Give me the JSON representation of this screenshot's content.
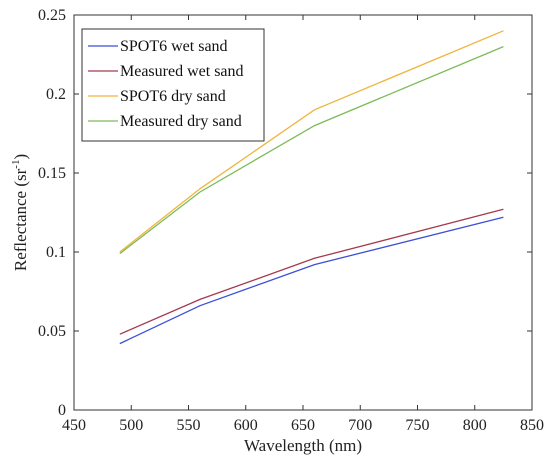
{
  "chart_data": {
    "type": "line",
    "xlabel": "Wavelength (nm)",
    "ylabel_main": "Reflectance (sr",
    "ylabel_sup": "-1",
    "ylabel_close": ")",
    "xlim": [
      450,
      850
    ],
    "ylim": [
      0,
      0.25
    ],
    "xticks": [
      "450",
      "500",
      "550",
      "600",
      "650",
      "700",
      "750",
      "800",
      "850"
    ],
    "yticks": [
      "0",
      "0.05",
      "0.1",
      "0.15",
      "0.2",
      "0.25"
    ],
    "grid": false,
    "legend_position": "top-left",
    "x": [
      490,
      560,
      660,
      825
    ],
    "series": [
      {
        "name": "SPOT6 wet sand",
        "color": "#3b4fd8",
        "values": [
          0.042,
          0.066,
          0.092,
          0.122
        ]
      },
      {
        "name": "Measured wet sand",
        "color": "#a33a4e",
        "values": [
          0.048,
          0.07,
          0.096,
          0.127
        ]
      },
      {
        "name": "SPOT6 dry sand",
        "color": "#f0b43a",
        "values": [
          0.1,
          0.14,
          0.19,
          0.24
        ]
      },
      {
        "name": "Measured dry sand",
        "color": "#7dbb5a",
        "values": [
          0.099,
          0.138,
          0.18,
          0.23
        ]
      }
    ]
  }
}
